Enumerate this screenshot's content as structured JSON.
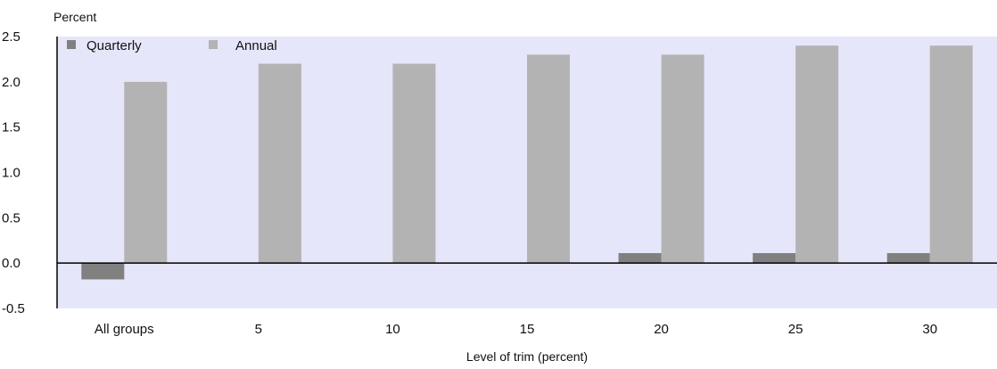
{
  "chart_data": {
    "type": "bar",
    "ylabel": "Percent",
    "xlabel": "Level of trim (percent)",
    "categories": [
      "All groups",
      "5",
      "10",
      "15",
      "20",
      "25",
      "30"
    ],
    "series": [
      {
        "name": "Quarterly",
        "color": "#808080",
        "values": [
          -0.18,
          0.0,
          0.0,
          0.0,
          0.11,
          0.11,
          0.11
        ]
      },
      {
        "name": "Annual",
        "color": "#b3b3b3",
        "values": [
          2.0,
          2.2,
          2.2,
          2.3,
          2.3,
          2.4,
          2.4
        ]
      }
    ],
    "ylim": [
      -0.5,
      2.5
    ],
    "yticks": [
      "-0.5",
      "0.0",
      "0.5",
      "1.0",
      "1.5",
      "2.0",
      "2.5"
    ],
    "ytick_values": [
      -0.5,
      0.0,
      0.5,
      1.0,
      1.5,
      2.0,
      2.5
    ],
    "grid": false,
    "legend_position": "top-left",
    "plot_background": "#e6e6fa",
    "zero_line_color": "#000000"
  }
}
